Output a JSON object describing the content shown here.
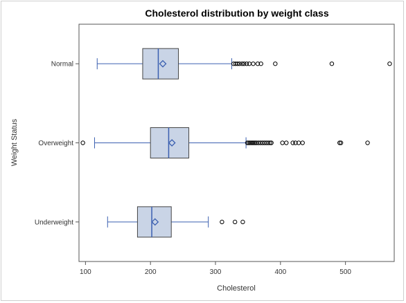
{
  "chart_data": {
    "type": "boxplot",
    "orientation": "horizontal",
    "title": "Cholesterol distribution by weight class",
    "xlabel": "Cholesterol",
    "ylabel": "Weight Status",
    "xlim": [
      90,
      575
    ],
    "xticks": [
      100,
      200,
      300,
      400,
      500
    ],
    "grid": false,
    "colors": {
      "box_fill": "#c9d4e6",
      "box_stroke": "#444444",
      "median": "#3a5fb0",
      "whisker": "#3a5fb0",
      "mean_marker": "#3a5fb0",
      "outlier": "#000000"
    },
    "categories": [
      "Normal",
      "Overweight",
      "Underweight"
    ],
    "series": [
      {
        "category": "Normal",
        "whisker_low": 118,
        "q1": 188,
        "median": 212,
        "q3": 243,
        "whisker_high": 325,
        "mean": 219,
        "outliers": [
          328,
          331,
          334,
          337,
          341,
          344,
          348,
          352,
          358,
          365,
          370,
          392,
          479,
          568
        ]
      },
      {
        "category": "Overweight",
        "whisker_low": 114,
        "q1": 200,
        "median": 228,
        "q3": 259,
        "whisker_high": 347,
        "mean": 233,
        "outliers": [
          96,
          349,
          351,
          353,
          355,
          357,
          359,
          361,
          363,
          366,
          369,
          372,
          375,
          378,
          381,
          384,
          386,
          403,
          409,
          419,
          423,
          428,
          434,
          491,
          493,
          534
        ]
      },
      {
        "category": "Underweight",
        "whisker_low": 134,
        "q1": 180,
        "median": 202,
        "q3": 232,
        "whisker_high": 289,
        "mean": 207,
        "outliers": [
          310,
          330,
          342
        ]
      }
    ]
  }
}
